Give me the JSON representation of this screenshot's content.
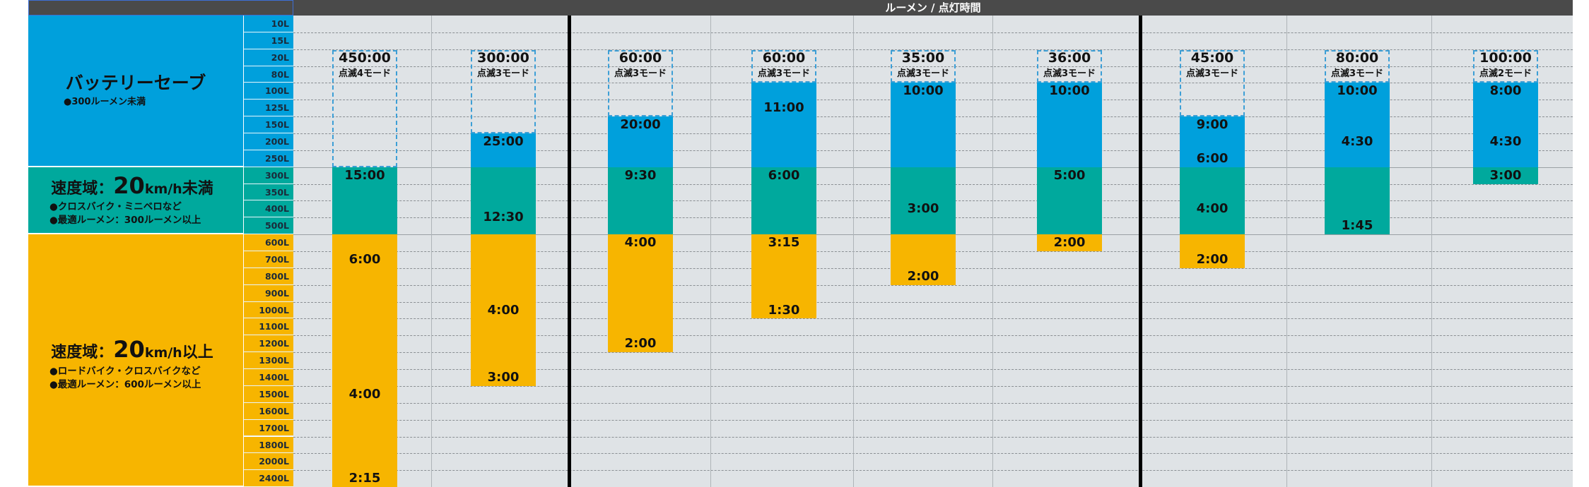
{
  "header": {
    "title": "ルーメン / 点灯時間"
  },
  "lumens": [
    "10L",
    "15L",
    "20L",
    "80L",
    "100L",
    "125L",
    "150L",
    "200L",
    "250L",
    "300L",
    "350L",
    "400L",
    "500L",
    "600L",
    "700L",
    "800L",
    "900L",
    "1000L",
    "1100L",
    "1200L",
    "1300L",
    "1400L",
    "1500L",
    "1600L",
    "1700L",
    "1800L",
    "2000L",
    "2400L"
  ],
  "categories": [
    {
      "id": "battery",
      "title": "バッテリーセーブ",
      "bullets": [
        "●300ルーメン未満"
      ]
    },
    {
      "id": "speed-low",
      "title_prefix": "速度域：",
      "title_num": "20",
      "title_unit": "km/h",
      "title_suffix": "未満",
      "bullets": [
        "●クロスバイク・ミニベロなど",
        "●最適ルーメン：300ルーメン以上"
      ]
    },
    {
      "id": "speed-high",
      "title_prefix": "速度域：",
      "title_num": "20",
      "title_unit": "km/h",
      "title_suffix": "以上",
      "bullets": [
        "●ロードバイク・クロスバイクなど",
        "●最適ルーメン：600ルーメン以上"
      ]
    }
  ],
  "products": [
    {
      "title": "450:00",
      "mode": "点滅4モード",
      "labels": [
        {
          "text": "15:00",
          "lumen_row": 9
        },
        {
          "text": "6:00",
          "lumen_row": 14
        },
        {
          "text": "4:00",
          "lumen_row": 22
        },
        {
          "text": "2:15",
          "lumen_row": 27
        }
      ]
    },
    {
      "title": "300:00",
      "mode": "点滅3モード",
      "labels": [
        {
          "text": "25:00",
          "lumen_row": 7
        },
        {
          "text": "12:30",
          "lumen_row": 11.5
        },
        {
          "text": "4:00",
          "lumen_row": 17
        },
        {
          "text": "3:00",
          "lumen_row": 21
        }
      ]
    },
    {
      "title": "60:00",
      "mode": "点滅3モード",
      "labels": [
        {
          "text": "20:00",
          "lumen_row": 6
        },
        {
          "text": "9:30",
          "lumen_row": 9
        },
        {
          "text": "4:00",
          "lumen_row": 13
        },
        {
          "text": "2:00",
          "lumen_row": 19
        }
      ]
    },
    {
      "title": "60:00",
      "mode": "点滅3モード",
      "labels": [
        {
          "text": "11:00",
          "lumen_row": 5
        },
        {
          "text": "6:00",
          "lumen_row": 9
        },
        {
          "text": "3:15",
          "lumen_row": 13
        },
        {
          "text": "1:30",
          "lumen_row": 17
        }
      ]
    },
    {
      "title": "35:00",
      "mode": "点滅3モード",
      "labels": [
        {
          "text": "10:00",
          "lumen_row": 4
        },
        {
          "text": "3:00",
          "lumen_row": 11
        },
        {
          "text": "2:00",
          "lumen_row": 15
        }
      ]
    },
    {
      "title": "36:00",
      "mode": "点滅3モード",
      "labels": [
        {
          "text": "10:00",
          "lumen_row": 4
        },
        {
          "text": "5:00",
          "lumen_row": 9
        },
        {
          "text": "2:00",
          "lumen_row": 13
        }
      ]
    },
    {
      "title": "45:00",
      "mode": "点滅3モード",
      "labels": [
        {
          "text": "9:00",
          "lumen_row": 6
        },
        {
          "text": "6:00",
          "lumen_row": 8
        },
        {
          "text": "4:00",
          "lumen_row": 11
        },
        {
          "text": "2:00",
          "lumen_row": 14
        }
      ]
    },
    {
      "title": "80:00",
      "mode": "点滅3モード",
      "labels": [
        {
          "text": "10:00",
          "lumen_row": 4
        },
        {
          "text": "4:30",
          "lumen_row": 7
        },
        {
          "text": "1:45",
          "lumen_row": 12
        }
      ]
    },
    {
      "title": "100:00",
      "mode": "点滅2モード",
      "labels": [
        {
          "text": "8:00",
          "lumen_row": 4
        },
        {
          "text": "4:30",
          "lumen_row": 7
        },
        {
          "text": "3:00",
          "lumen_row": 9
        }
      ]
    }
  ],
  "colors": {
    "blue": "#00a0dc",
    "green": "#00a99d",
    "yellow": "#f7b500",
    "grid": "#dfe3e6",
    "header": "#4a4a4a"
  }
}
